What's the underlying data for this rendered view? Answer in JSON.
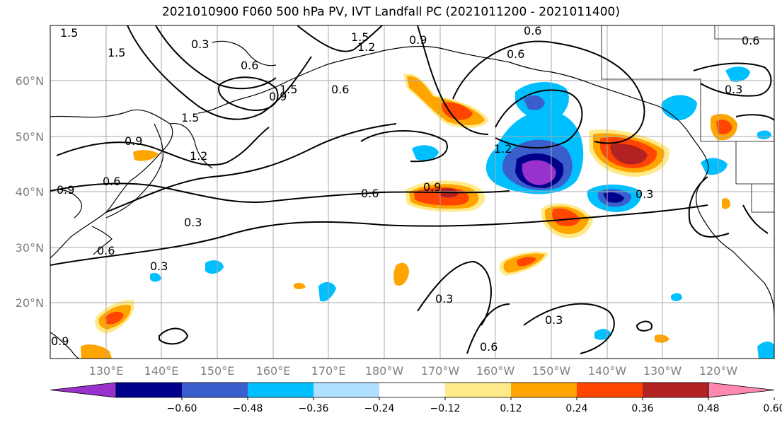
{
  "title": "2021010900 F060 500 hPa PV, IVT Landfall PC (2021011200 - 2021011400)",
  "latitude_labels": [
    "60°N",
    "50°N",
    "40°N",
    "30°N",
    "20°N"
  ],
  "longitude_labels": [
    "130°E",
    "140°E",
    "150°E",
    "160°E",
    "170°E",
    "180°W",
    "170°W",
    "160°W",
    "150°W",
    "140°W",
    "130°W",
    "120°W"
  ],
  "colorbar": {
    "colors": [
      "#9932cc",
      "#00008b",
      "#3a5fcd",
      "#00bfff",
      "#b0e0ff",
      "#ffffff",
      "#ffea8a",
      "#ffa500",
      "#ff4500",
      "#b22222",
      "#ff88b0"
    ],
    "tick_labels": [
      "−0.60",
      "−0.48",
      "−0.36",
      "−0.24",
      "−0.12",
      "0.12",
      "0.24",
      "0.36",
      "0.48",
      "0.60"
    ]
  },
  "contour_labels": [
    "1.5",
    "1.5",
    "0.3",
    "0.6",
    "0.9",
    "1.5",
    "1.2",
    "0.9",
    "0.6",
    "0.6",
    "0.6",
    "0.6",
    "0.3",
    "1.5",
    "1.5",
    "0.9",
    "1.2",
    "0.9",
    "0.6",
    "0.9",
    "0.3",
    "0.6",
    "0.3",
    "1.2",
    "0.6",
    "0.9",
    "0.3",
    "0.3",
    "0.3",
    "0.6"
  ]
}
